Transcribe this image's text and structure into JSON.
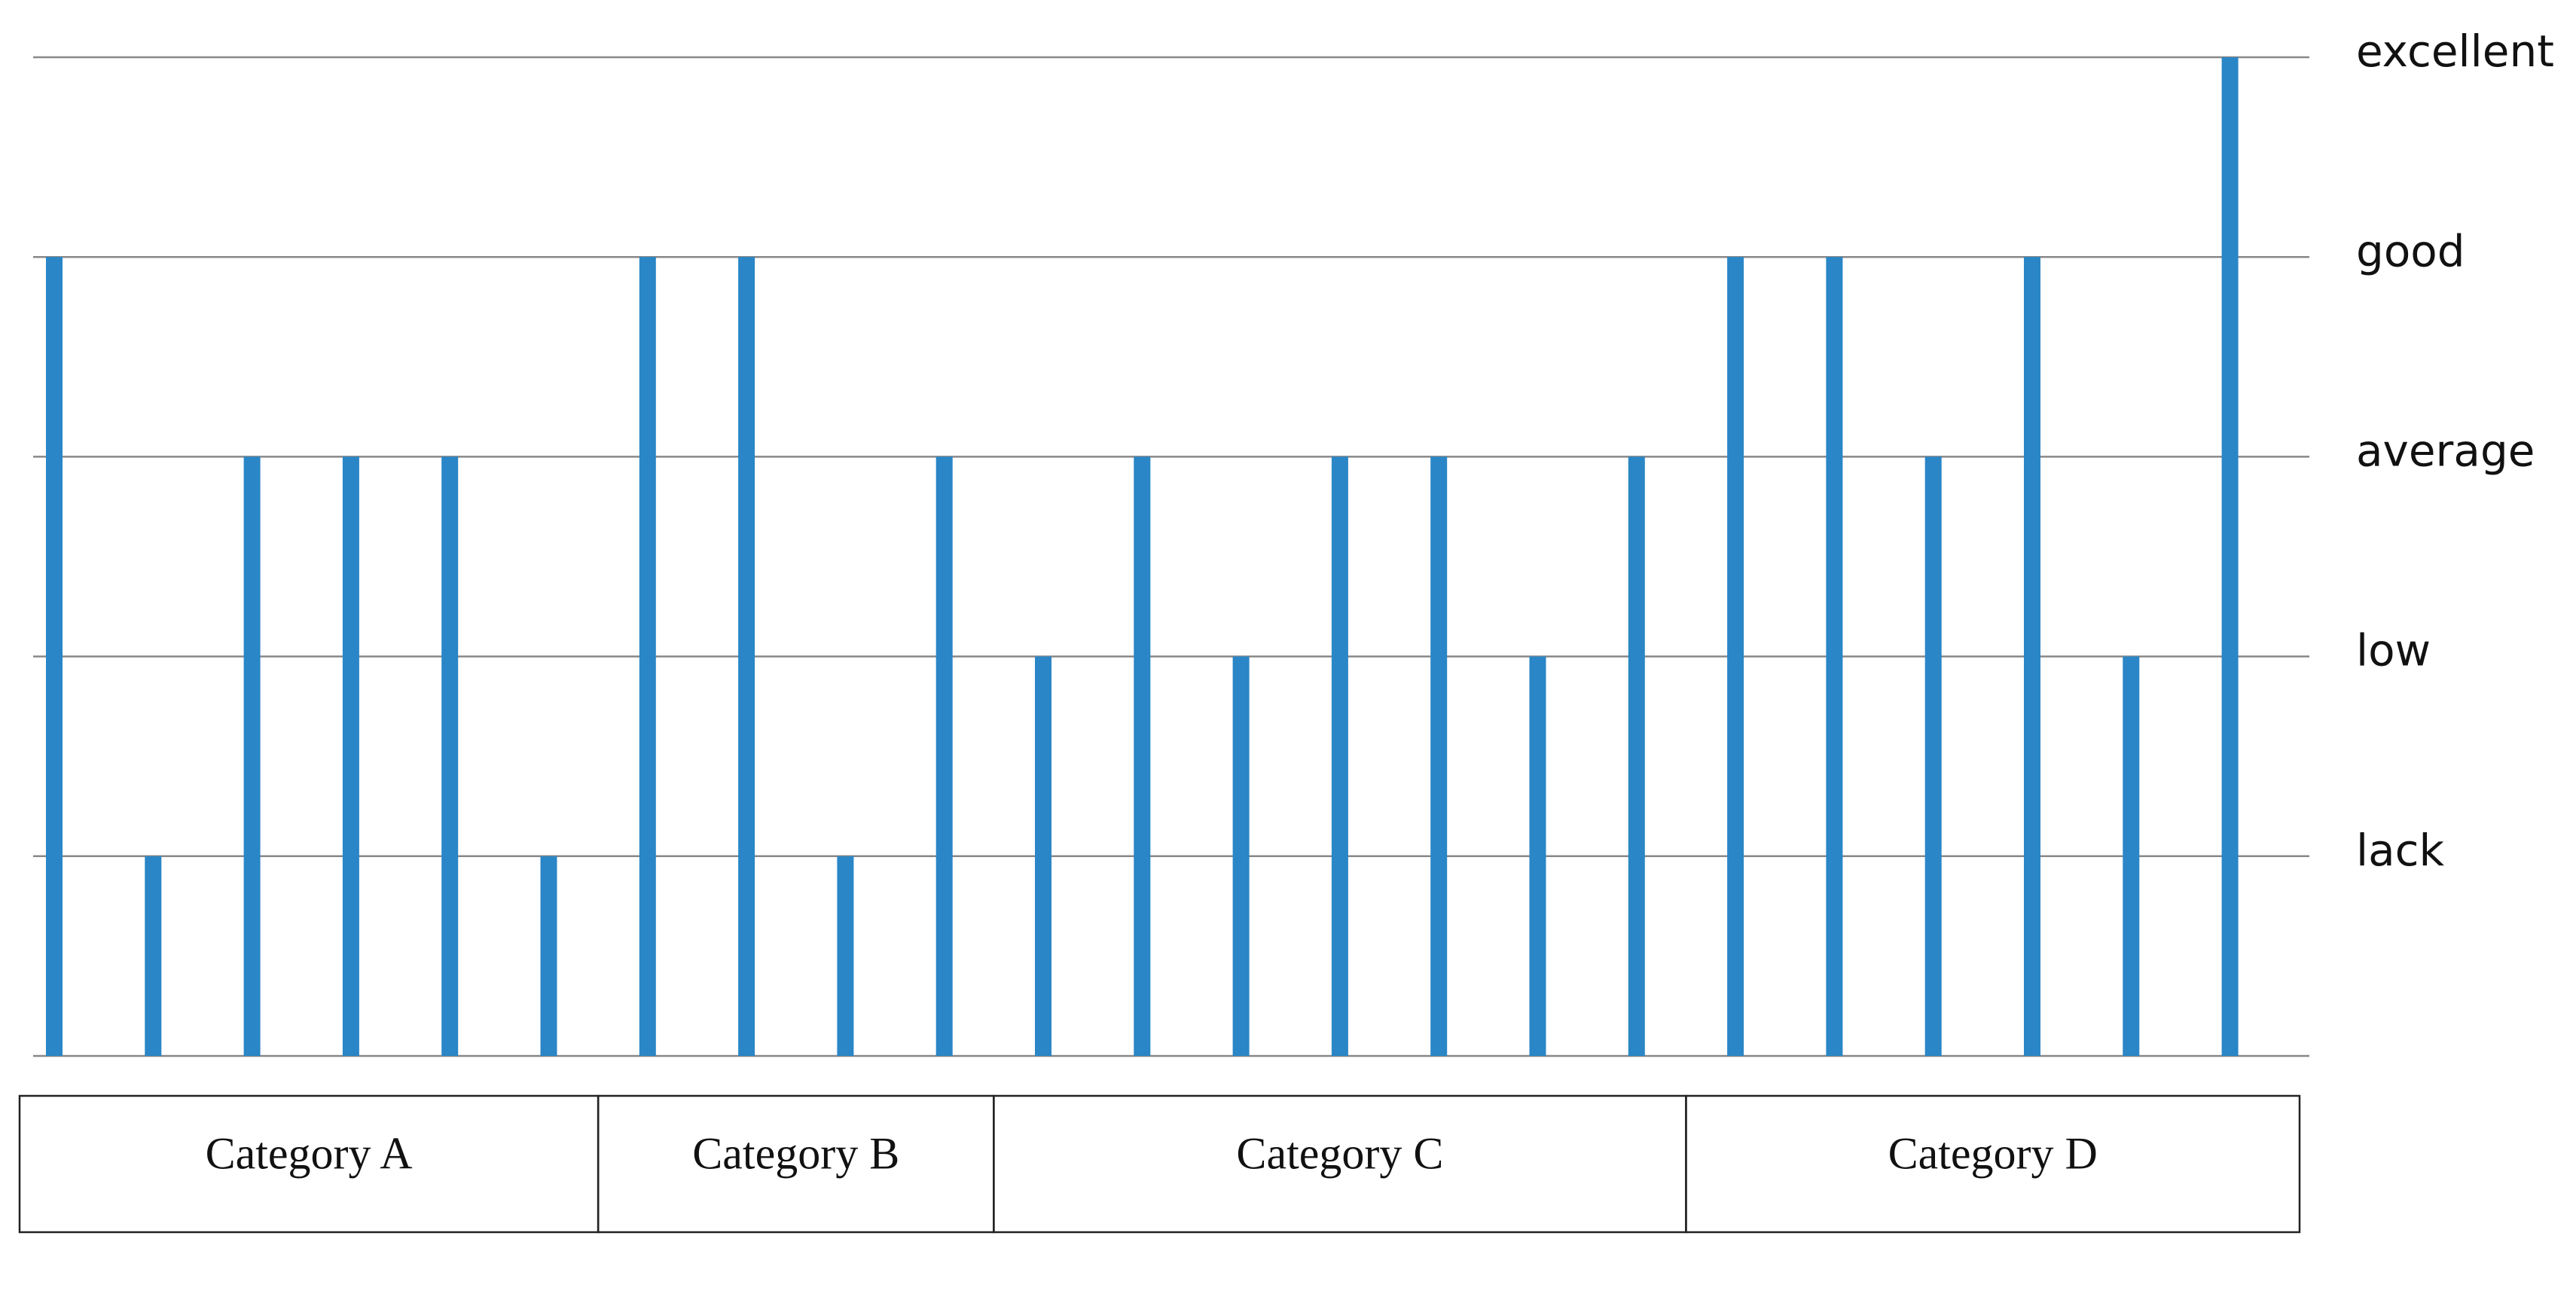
{
  "chart_data": {
    "type": "bar",
    "values": [
      4,
      1,
      3,
      3,
      3,
      1,
      4,
      4,
      1,
      3,
      2,
      3,
      2,
      3,
      3,
      2,
      3,
      4,
      4,
      3,
      4,
      2,
      5
    ],
    "color": "#2a86c6",
    "ylim": [
      0,
      5
    ],
    "yticks": [
      {
        "value": 1,
        "label": "lack"
      },
      {
        "value": 2,
        "label": "low"
      },
      {
        "value": 3,
        "label": "average"
      },
      {
        "value": 4,
        "label": "good"
      },
      {
        "value": 5,
        "label": "excellent"
      }
    ],
    "grid": true,
    "groups": [
      {
        "name": "Category A",
        "size": 6
      },
      {
        "name": "Category B",
        "size": 4
      },
      {
        "name": "Category C",
        "size": 7
      },
      {
        "name": "Category D",
        "size": 6
      }
    ]
  }
}
